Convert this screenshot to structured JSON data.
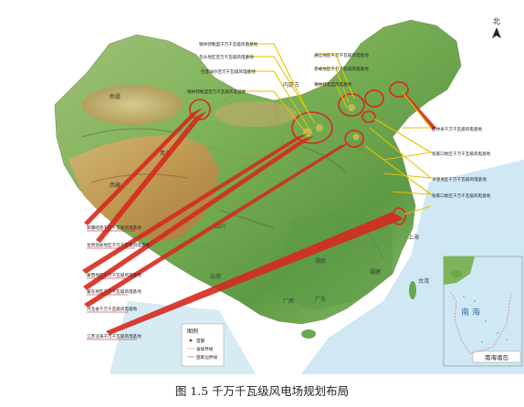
{
  "caption": "图 1.5 千万千瓦级风电场规划布局",
  "compass": {
    "label": "北",
    "icon": "north-arrow-icon"
  },
  "inset": {
    "sea_label": "南 海",
    "islands_label": "南海诸岛"
  },
  "legend": {
    "title": "图例",
    "items": [
      "首都",
      "省级界线",
      "国家边界线"
    ]
  },
  "wind_bases": [
    "新疆哈密千万千瓦级风电基地",
    "甘肃酒泉地区千万千瓦级风电基地",
    "蒙西地区千万千瓦级风电基地",
    "蒙东地区千万千瓦级风电基地",
    "河北省千万千瓦级风电基地",
    "江苏沿海千万千瓦级风电基地",
    "吉林省千万千瓦级风电基地",
    "张家口地区千万千瓦级风电基地",
    "承德地区千万千瓦级风电基地",
    "张家口地区千万千瓦级风电基地",
    "锡林郭勒盟千万千瓦级风电基地",
    "包头地区百万千瓦级风电基地",
    "巴彦淖尔百万千瓦级风电基地",
    "锡林郭勒盟百万千瓦级风电基地",
    "通辽地区千万千瓦级风电基地",
    "赤峰地区千万千瓦级风电基地",
    "锡林郭勒盟风电基地"
  ],
  "provinces": [
    "新疆",
    "西藏",
    "青海",
    "四川",
    "云南",
    "广西",
    "广东",
    "湖南",
    "福建",
    "上海",
    "内蒙古",
    "台湾"
  ],
  "colors": {
    "ocean": "#c9e6f2",
    "lowland": "#7fb45a",
    "desert": "#c9a463",
    "plateau": "#b98a45",
    "forest": "#4f8a3a",
    "callout": "#d62a1e",
    "leader": "#e8d000"
  }
}
